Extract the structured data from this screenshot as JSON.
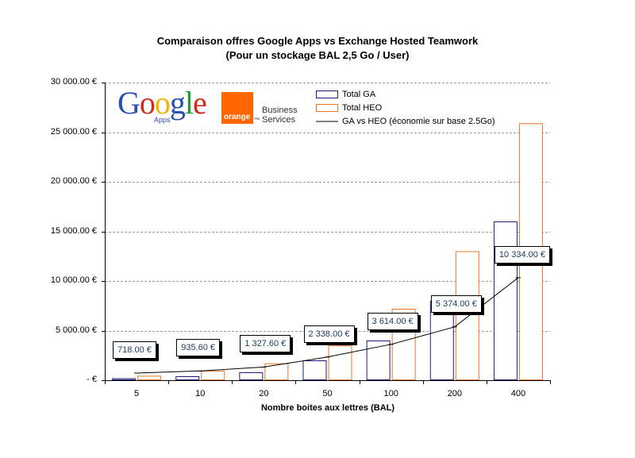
{
  "title_line1": "Comparaison offres Google Apps vs Exchange Hosted Teamwork",
  "title_line2": "(Pour un stockage BAL 2,5 Go / User)",
  "logos": {
    "google_word": "Google",
    "google_sub": "Apps",
    "orange_word": "orange",
    "orange_tm": "™",
    "business_line1": "Business",
    "business_line2": "Services"
  },
  "colors": {
    "ga": "#1f1f7a",
    "heo": "#e87722",
    "line": "#000000",
    "grid": "#9a9a9a"
  },
  "chart_data": {
    "type": "bar",
    "title": "Comparaison offres Google Apps vs Exchange Hosted Teamwork (Pour un stockage BAL 2,5 Go / User)",
    "xlabel": "Nombre boites aux lettres (BAL)",
    "ylabel": "",
    "categories": [
      "5",
      "10",
      "20",
      "50",
      "100",
      "200",
      "400"
    ],
    "ylim": [
      0,
      30000
    ],
    "yticks": [
      0,
      5000,
      10000,
      15000,
      20000,
      25000,
      30000
    ],
    "ytick_labels": [
      "-   €",
      "5 000.00 €",
      "10 000.00 €",
      "15 000.00 €",
      "20 000.00 €",
      "25 000.00 €",
      "30 000.00 €"
    ],
    "grid": "horizontal dashed",
    "legend_position": "top-center",
    "series": [
      {
        "name": "Total GA",
        "kind": "bar",
        "values": [
          200,
          400,
          800,
          2000,
          4000,
          8000,
          16000
        ]
      },
      {
        "name": "Total HEO",
        "kind": "bar",
        "values": [
          450,
          950,
          1700,
          3500,
          7200,
          13000,
          25900
        ]
      },
      {
        "name": "GA vs HEO (économie sur base 2.5Go)",
        "kind": "line",
        "values": [
          718.0,
          935.6,
          1327.6,
          2338.0,
          3614.0,
          5374.0,
          10334.0
        ]
      }
    ],
    "data_labels": [
      "718.00 €",
      "935.60 €",
      "1 327.60 €",
      "2 338.00 €",
      "3 614.00 €",
      "5 374.00 €",
      "10 334.00 €"
    ]
  }
}
